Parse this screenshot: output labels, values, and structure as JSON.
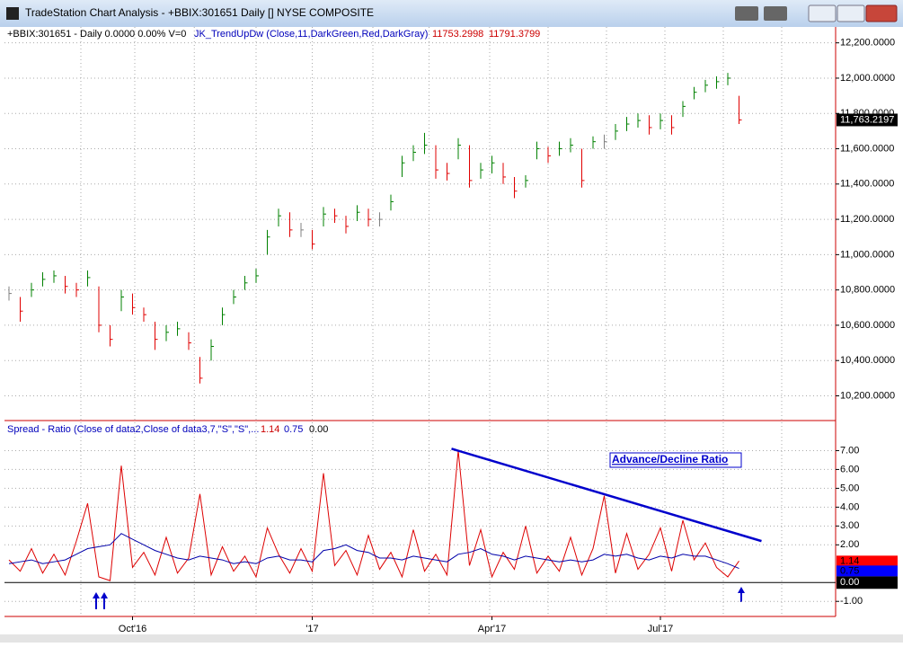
{
  "window": {
    "title": "TradeStation Chart Analysis - +BBIX:301651 Daily [] NYSE COMPOSITE"
  },
  "chart_data": [
    {
      "type": "ohlc",
      "header": {
        "symbol": "+BBIX:301651 - Daily  0.0000  0.00%  V=0",
        "indicator": "JK_TrendUpDw (Close,11,DarkGreen,Red,DarkGray)",
        "values": [
          "11753.2998",
          "11791.3799"
        ]
      },
      "values": [
        10780,
        10680,
        10800,
        10860,
        10880,
        10820,
        10800,
        10870,
        10600,
        10520,
        10760,
        10700,
        10660,
        10520,
        10560,
        10580,
        10500,
        10300,
        10480,
        10660,
        10760,
        10840,
        10880,
        11100,
        11220,
        11140,
        11140,
        11060,
        11230,
        11220,
        11160,
        11240,
        11200,
        11200,
        11300,
        11520,
        11580,
        11620,
        11480,
        11460,
        11620,
        11420,
        11480,
        11520,
        11440,
        11360,
        11420,
        11600,
        11560,
        11600,
        11620,
        11420,
        11640,
        11640,
        11700,
        11740,
        11760,
        11720,
        11760,
        11720,
        11840,
        11920,
        11960,
        11980,
        12000,
        11763.2197
      ],
      "high": [
        10820,
        10760,
        10840,
        10900,
        10910,
        10880,
        10840,
        10910,
        10820,
        10600,
        10800,
        10780,
        10700,
        10620,
        10600,
        10620,
        10560,
        10420,
        10520,
        10700,
        10800,
        10880,
        10920,
        11140,
        11260,
        11240,
        11180,
        11140,
        11270,
        11260,
        11220,
        11280,
        11260,
        11240,
        11340,
        11560,
        11620,
        11690,
        11620,
        11520,
        11660,
        11620,
        11520,
        11560,
        11520,
        11440,
        11450,
        11640,
        11610,
        11640,
        11660,
        11600,
        11670,
        11680,
        11740,
        11780,
        11800,
        11790,
        11800,
        11790,
        11870,
        11950,
        11990,
        12010,
        12030,
        11900
      ],
      "low": [
        10740,
        10620,
        10760,
        10820,
        10840,
        10780,
        10760,
        10820,
        10560,
        10480,
        10680,
        10660,
        10620,
        10460,
        10510,
        10540,
        10460,
        10270,
        10400,
        10600,
        10720,
        10800,
        10840,
        11000,
        11160,
        11100,
        11100,
        11030,
        11160,
        11180,
        11120,
        11190,
        11160,
        11160,
        11250,
        11440,
        11530,
        11570,
        11430,
        11420,
        11540,
        11380,
        11430,
        11460,
        11400,
        11320,
        11380,
        11540,
        11520,
        11560,
        11580,
        11380,
        11600,
        11600,
        11650,
        11700,
        11720,
        11680,
        11710,
        11680,
        11780,
        11880,
        11920,
        11940,
        11960,
        11740
      ],
      "last_label": "11,763.2197",
      "up_color": "#008000",
      "down_color": "#e00000",
      "neutral_color": "#808080",
      "ylim": [
        10060,
        12290
      ],
      "yticks": [
        {
          "value": 10200,
          "label": "10,200.0000"
        },
        {
          "value": 10400,
          "label": "10,400.0000"
        },
        {
          "value": 10600,
          "label": "10,600.0000"
        },
        {
          "value": 10800,
          "label": "10,800.0000"
        },
        {
          "value": 11000,
          "label": "11,000.0000"
        },
        {
          "value": 11200,
          "label": "11,200.0000"
        },
        {
          "value": 11400,
          "label": "11,400.0000"
        },
        {
          "value": 11600,
          "label": "11,600.0000"
        },
        {
          "value": 11800,
          "label": "11,800.0000"
        },
        {
          "value": 12000,
          "label": "12,000.0000"
        },
        {
          "value": 12200,
          "label": "12,200.0000"
        }
      ],
      "grid": true
    },
    {
      "type": "line",
      "title": "Spread - Ratio (Close of data2,Close of data3,7,\"S\",\"S\",...",
      "header_values": [
        "1.14",
        "0.75",
        "0.00"
      ],
      "annotation": "Advance/Decline Ratio",
      "categories": [
        null,
        null,
        null,
        null,
        null,
        null,
        null,
        null,
        null,
        null,
        null,
        "Oct'16",
        null,
        null,
        null,
        null,
        null,
        null,
        null,
        null,
        null,
        null,
        null,
        null,
        null,
        null,
        null,
        "'17",
        null,
        null,
        null,
        null,
        null,
        null,
        null,
        null,
        null,
        null,
        null,
        null,
        null,
        null,
        null,
        "Apr'17",
        null,
        null,
        null,
        null,
        null,
        null,
        null,
        null,
        null,
        null,
        null,
        null,
        null,
        null,
        "Jul'17",
        null,
        null,
        null,
        null,
        null,
        null,
        null
      ],
      "xgrid": [
        6.4,
        11.2,
        16.5,
        22,
        27,
        32.4,
        37.4,
        42.8,
        48,
        53.2,
        58.4,
        63.6,
        68.8
      ],
      "series": [
        {
          "color": "#dd0000",
          "values": [
            1.2,
            0.6,
            1.8,
            0.5,
            1.5,
            0.4,
            2.2,
            4.2,
            0.3,
            0.1,
            6.2,
            0.8,
            1.6,
            0.4,
            2.4,
            0.5,
            1.3,
            4.7,
            0.4,
            1.9,
            0.6,
            1.4,
            0.3,
            2.9,
            1.5,
            0.5,
            1.8,
            0.6,
            5.8,
            0.9,
            1.7,
            0.4,
            2.5,
            0.7,
            1.6,
            0.3,
            2.8,
            0.6,
            1.5,
            0.4,
            7.0,
            0.9,
            2.8,
            0.3,
            1.6,
            0.7,
            3.0,
            0.5,
            1.4,
            0.6,
            2.4,
            0.4,
            1.8,
            4.6,
            0.5,
            2.6,
            0.7,
            1.5,
            2.9,
            0.6,
            3.3,
            1.2,
            2.1,
            0.8,
            0.3,
            1.14
          ]
        },
        {
          "color": "#0000aa",
          "values": [
            1.0,
            1.1,
            1.2,
            1.0,
            1.1,
            1.2,
            1.5,
            1.8,
            1.9,
            2.0,
            2.6,
            2.3,
            2.0,
            1.7,
            1.5,
            1.3,
            1.2,
            1.4,
            1.3,
            1.2,
            1.0,
            1.1,
            1.0,
            1.3,
            1.4,
            1.2,
            1.2,
            1.1,
            1.7,
            1.8,
            2.0,
            1.7,
            1.6,
            1.3,
            1.3,
            1.2,
            1.4,
            1.3,
            1.2,
            1.1,
            1.5,
            1.6,
            1.8,
            1.5,
            1.4,
            1.2,
            1.4,
            1.3,
            1.2,
            1.1,
            1.2,
            1.1,
            1.2,
            1.5,
            1.4,
            1.5,
            1.3,
            1.2,
            1.4,
            1.3,
            1.5,
            1.4,
            1.4,
            1.2,
            1.0,
            0.75
          ]
        }
      ],
      "trendline": {
        "x": [
          39.4,
          67
        ],
        "y": [
          7.1,
          2.2
        ],
        "color": "#0000cc"
      },
      "ylim": [
        -1.8,
        8.5
      ],
      "yticks": [
        {
          "value": -1,
          "label": "-1.00"
        },
        {
          "value": 0,
          "label": "0.00"
        },
        {
          "value": 2,
          "label": "2.00"
        },
        {
          "value": 3,
          "label": "3.00"
        },
        {
          "value": 4,
          "label": "4.00"
        },
        {
          "value": 5,
          "label": "5.00"
        },
        {
          "value": 6,
          "label": "6.00"
        },
        {
          "value": 7,
          "label": "7.00"
        }
      ],
      "grid": true
    }
  ]
}
